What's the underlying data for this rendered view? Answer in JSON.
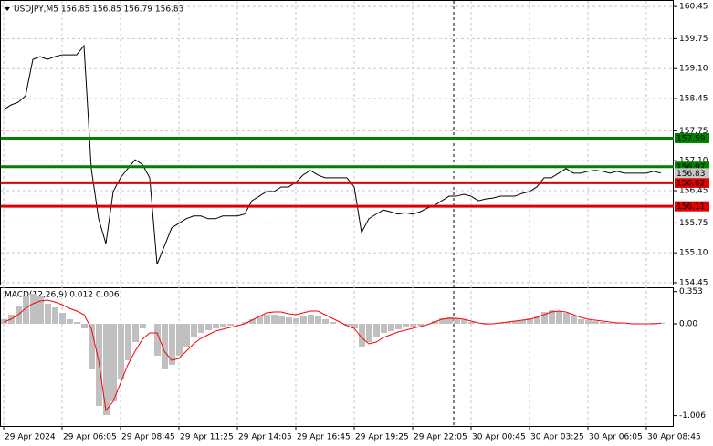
{
  "chart_data": [
    {
      "type": "line",
      "title": "USDJPY,M5  156.85 156.85 156.79 156.83",
      "categories": [
        "29 Apr 2024",
        null,
        null,
        null,
        null,
        null,
        null,
        null,
        "29 Apr 06:05",
        null,
        null,
        null,
        null,
        null,
        null,
        null,
        "29 Apr 08:45",
        null,
        null,
        null,
        null,
        null,
        null,
        null,
        "29 Apr 11:25",
        null,
        null,
        null,
        null,
        null,
        null,
        null,
        "29 Apr 14:05",
        null,
        null,
        null,
        null,
        null,
        null,
        null,
        "29 Apr 16:45",
        null,
        null,
        null,
        null,
        null,
        null,
        null,
        "29 Apr 19:25",
        null,
        null,
        null,
        null,
        null,
        null,
        null,
        "29 Apr 22:05",
        null,
        null,
        null,
        null,
        null,
        null,
        null,
        "30 Apr 00:45",
        null,
        null,
        null,
        null,
        null,
        null,
        null,
        "30 Apr 03:25",
        null,
        null,
        null,
        null,
        null,
        null,
        null,
        "30 Apr 06:05",
        null,
        null,
        null,
        null,
        null,
        null,
        null,
        "30 Apr 08:45",
        null,
        null
      ],
      "series": [
        {
          "color": "#000000",
          "values": [
            158.21,
            158.31,
            158.37,
            158.51,
            159.3,
            159.36,
            159.3,
            159.36,
            159.4,
            159.4,
            159.4,
            159.6,
            156.93,
            155.84,
            155.3,
            156.43,
            156.73,
            156.93,
            157.12,
            157.02,
            156.73,
            154.85,
            155.24,
            155.64,
            155.74,
            155.84,
            155.9,
            155.9,
            155.84,
            155.84,
            155.9,
            155.9,
            155.9,
            155.94,
            156.23,
            156.33,
            156.43,
            156.43,
            156.53,
            156.53,
            156.63,
            156.79,
            156.89,
            156.79,
            156.73,
            156.73,
            156.73,
            156.73,
            156.53,
            155.54,
            155.84,
            155.94,
            156.03,
            155.99,
            155.94,
            155.97,
            155.94,
            155.99,
            156.07,
            156.13,
            156.23,
            156.33,
            156.33,
            156.37,
            156.33,
            156.23,
            156.27,
            156.29,
            156.33,
            156.33,
            156.33,
            156.39,
            156.43,
            156.53,
            156.73,
            156.73,
            156.83,
            156.93,
            156.83,
            156.83,
            156.87,
            156.89,
            156.87,
            156.83,
            156.87,
            156.83,
            156.83,
            156.83,
            156.83,
            156.87,
            156.83
          ]
        }
      ],
      "ylim": [
        154.39,
        160.59
      ],
      "yticks": [
        160.45,
        159.75,
        {
          "value": 159.1,
          "label": "159.10"
        },
        158.45,
        157.75,
        {
          "value": 157.1,
          "label": "157.10"
        },
        156.45,
        155.75,
        {
          "value": 155.1,
          "label": "155.10"
        },
        154.45
      ],
      "grid": true,
      "levels": [
        {
          "value": 157.59,
          "color": "#008000"
        },
        {
          "value": 156.97,
          "color": "#008000"
        },
        {
          "value": 156.62,
          "color": "#e00000"
        },
        {
          "value": 156.11,
          "color": "#e00000"
        }
      ],
      "last_price": 156.83
    },
    {
      "type": "macd",
      "title": "MACD(12,26,9) 0.012 0.006",
      "series": [
        {
          "color": "#c0c0c0",
          "values": [
            0.05,
            0.1,
            0.2,
            0.3,
            0.33,
            0.3,
            0.22,
            0.18,
            0.12,
            0.05,
            0.02,
            -0.05,
            -0.5,
            -0.9,
            -1.0,
            -0.85,
            -0.6,
            -0.4,
            -0.2,
            -0.05,
            0.0,
            -0.35,
            -0.5,
            -0.45,
            -0.35,
            -0.25,
            -0.15,
            -0.1,
            -0.07,
            -0.05,
            -0.03,
            -0.02,
            0.0,
            0.02,
            0.05,
            0.08,
            0.1,
            0.1,
            0.09,
            0.07,
            0.06,
            0.08,
            0.1,
            0.08,
            0.05,
            0.02,
            0.0,
            -0.02,
            -0.05,
            -0.25,
            -0.2,
            -0.15,
            -0.1,
            -0.08,
            -0.06,
            -0.04,
            -0.03,
            -0.02,
            0.0,
            0.03,
            0.06,
            0.07,
            0.06,
            0.05,
            0.02,
            0.0,
            -0.01,
            0.0,
            0.01,
            0.02,
            0.03,
            0.04,
            0.06,
            0.08,
            0.13,
            0.15,
            0.14,
            0.12,
            0.08,
            0.05,
            0.04,
            0.03,
            0.02,
            0.01,
            0.01,
            0.0,
            0.0,
            0.0,
            0.0,
            0.01,
            0.012
          ]
        },
        {
          "color": "#ff0000",
          "values": [
            0.02,
            0.05,
            0.1,
            0.17,
            0.22,
            0.25,
            0.26,
            0.24,
            0.21,
            0.17,
            0.14,
            0.1,
            -0.05,
            -0.4,
            -0.95,
            -0.85,
            -0.65,
            -0.45,
            -0.3,
            -0.17,
            -0.1,
            -0.1,
            -0.3,
            -0.4,
            -0.38,
            -0.3,
            -0.22,
            -0.16,
            -0.12,
            -0.08,
            -0.06,
            -0.04,
            -0.02,
            0.0,
            0.04,
            0.08,
            0.12,
            0.13,
            0.13,
            0.11,
            0.1,
            0.12,
            0.14,
            0.14,
            0.1,
            0.06,
            0.02,
            -0.02,
            -0.05,
            -0.15,
            -0.22,
            -0.2,
            -0.15,
            -0.12,
            -0.09,
            -0.07,
            -0.05,
            -0.03,
            -0.01,
            0.02,
            0.05,
            0.06,
            0.06,
            0.05,
            0.03,
            0.01,
            0.0,
            0.0,
            0.01,
            0.02,
            0.03,
            0.04,
            0.05,
            0.07,
            0.1,
            0.13,
            0.14,
            0.13,
            0.1,
            0.07,
            0.05,
            0.04,
            0.03,
            0.02,
            0.01,
            0.01,
            0.0,
            0.0,
            0.0,
            0.0,
            0.006
          ]
        }
      ],
      "ylim": [
        -1.13,
        0.39
      ],
      "yticks": [
        0.353,
        {
          "value": 0,
          "label": "0.00"
        },
        -1.006
      ]
    }
  ]
}
